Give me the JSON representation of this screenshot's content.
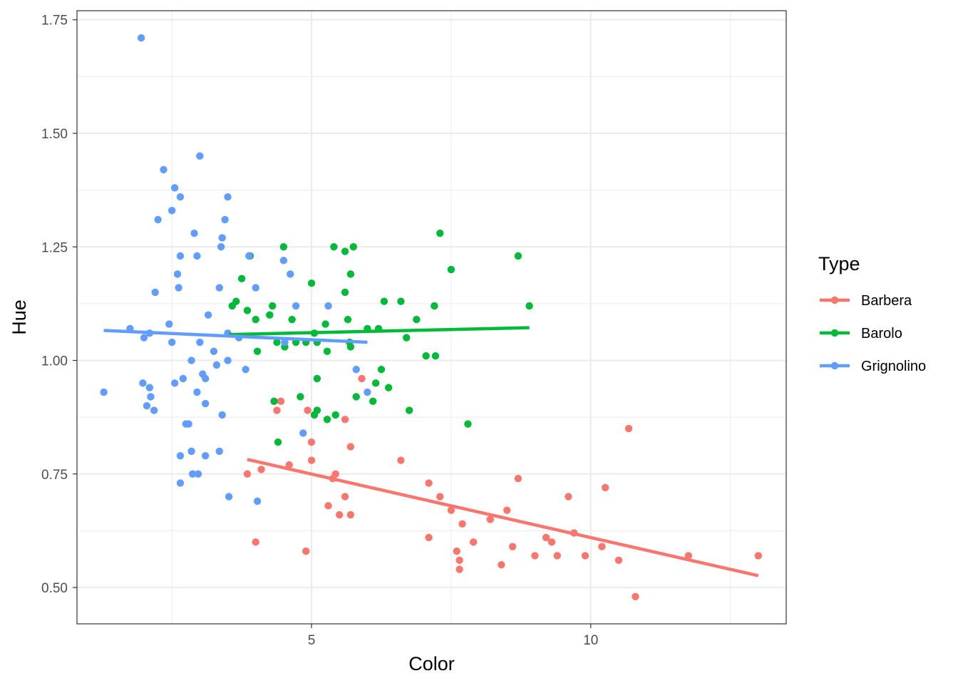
{
  "chart_data": {
    "type": "scatter",
    "xlabel": "Color",
    "ylabel": "Hue",
    "xlim": [
      0.8,
      13.5
    ],
    "ylim": [
      0.42,
      1.77
    ],
    "x_ticks": [
      5,
      10
    ],
    "x_tick_labels": [
      "5",
      "10"
    ],
    "x_minor_ticks": [
      2.5,
      7.5,
      12.5
    ],
    "y_ticks": [
      0.5,
      0.75,
      1.0,
      1.25,
      1.5,
      1.75
    ],
    "y_tick_labels": [
      "0.50",
      "0.75",
      "1.00",
      "1.25",
      "1.50",
      "1.75"
    ],
    "y_minor_ticks": [
      0.625,
      0.875,
      1.125,
      1.375,
      1.625
    ],
    "grid": true,
    "legend": {
      "title": "Type",
      "position": "right"
    },
    "series": [
      {
        "name": "Barbera",
        "color": "#F8766D",
        "points": [
          [
            3.85,
            0.75
          ],
          [
            4.0,
            0.6
          ],
          [
            4.1,
            0.76
          ],
          [
            4.38,
            0.89
          ],
          [
            4.45,
            0.91
          ],
          [
            4.6,
            0.77
          ],
          [
            4.9,
            0.58
          ],
          [
            4.93,
            0.89
          ],
          [
            5.0,
            0.82
          ],
          [
            5.0,
            0.78
          ],
          [
            5.3,
            0.68
          ],
          [
            5.38,
            0.74
          ],
          [
            5.43,
            0.75
          ],
          [
            5.5,
            0.66
          ],
          [
            5.6,
            0.87
          ],
          [
            5.6,
            0.7
          ],
          [
            5.7,
            0.81
          ],
          [
            5.7,
            0.66
          ],
          [
            5.9,
            0.96
          ],
          [
            6.6,
            0.78
          ],
          [
            7.1,
            0.73
          ],
          [
            7.1,
            0.61
          ],
          [
            7.3,
            0.7
          ],
          [
            7.5,
            0.67
          ],
          [
            7.6,
            0.58
          ],
          [
            7.65,
            0.56
          ],
          [
            7.65,
            0.54
          ],
          [
            7.7,
            0.64
          ],
          [
            7.9,
            0.6
          ],
          [
            8.2,
            0.65
          ],
          [
            8.4,
            0.55
          ],
          [
            8.5,
            0.67
          ],
          [
            8.6,
            0.59
          ],
          [
            8.7,
            0.74
          ],
          [
            9.0,
            0.57
          ],
          [
            9.2,
            0.61
          ],
          [
            9.3,
            0.6
          ],
          [
            9.4,
            0.57
          ],
          [
            9.6,
            0.7
          ],
          [
            9.7,
            0.62
          ],
          [
            9.9,
            0.57
          ],
          [
            10.2,
            0.59
          ],
          [
            10.26,
            0.72
          ],
          [
            10.5,
            0.56
          ],
          [
            10.68,
            0.85
          ],
          [
            10.8,
            0.48
          ],
          [
            11.75,
            0.57
          ],
          [
            13.0,
            0.57
          ]
        ],
        "fit": [
          [
            3.85,
            0.782
          ],
          [
            13.0,
            0.526
          ]
        ]
      },
      {
        "name": "Barolo",
        "color": "#00BA38",
        "points": [
          [
            3.58,
            1.12
          ],
          [
            3.65,
            1.13
          ],
          [
            3.75,
            1.18
          ],
          [
            3.85,
            1.11
          ],
          [
            3.9,
            1.23
          ],
          [
            4.0,
            1.09
          ],
          [
            4.03,
            1.02
          ],
          [
            4.25,
            1.1
          ],
          [
            4.3,
            1.12
          ],
          [
            4.33,
            0.91
          ],
          [
            4.38,
            1.04
          ],
          [
            4.4,
            0.82
          ],
          [
            4.5,
            1.25
          ],
          [
            4.52,
            1.03
          ],
          [
            4.65,
            1.09
          ],
          [
            4.72,
            1.04
          ],
          [
            4.8,
            0.92
          ],
          [
            4.9,
            1.04
          ],
          [
            5.0,
            1.17
          ],
          [
            5.05,
            0.88
          ],
          [
            5.05,
            1.06
          ],
          [
            5.1,
            0.96
          ],
          [
            5.1,
            0.89
          ],
          [
            5.1,
            1.04
          ],
          [
            5.25,
            1.08
          ],
          [
            5.28,
            1.02
          ],
          [
            5.28,
            0.87
          ],
          [
            5.4,
            1.25
          ],
          [
            5.43,
            0.88
          ],
          [
            5.6,
            1.24
          ],
          [
            5.6,
            1.15
          ],
          [
            5.65,
            1.09
          ],
          [
            5.68,
            1.04
          ],
          [
            5.7,
            1.03
          ],
          [
            5.7,
            1.19
          ],
          [
            5.75,
            1.25
          ],
          [
            5.8,
            0.92
          ],
          [
            6.0,
            1.07
          ],
          [
            6.1,
            0.91
          ],
          [
            6.15,
            0.95
          ],
          [
            6.2,
            1.07
          ],
          [
            6.25,
            0.98
          ],
          [
            6.3,
            1.13
          ],
          [
            6.38,
            0.94
          ],
          [
            6.6,
            1.13
          ],
          [
            6.7,
            1.05
          ],
          [
            6.75,
            0.89
          ],
          [
            6.88,
            1.09
          ],
          [
            7.05,
            1.01
          ],
          [
            7.2,
            1.12
          ],
          [
            7.22,
            1.01
          ],
          [
            7.3,
            1.28
          ],
          [
            7.5,
            1.2
          ],
          [
            7.8,
            0.86
          ],
          [
            8.7,
            1.23
          ],
          [
            8.9,
            1.12
          ]
        ],
        "fit": [
          [
            3.52,
            1.057
          ],
          [
            8.9,
            1.072
          ]
        ]
      },
      {
        "name": "Grignolino",
        "color": "#619CFF",
        "points": [
          [
            1.28,
            0.93
          ],
          [
            1.75,
            1.07
          ],
          [
            1.95,
            1.71
          ],
          [
            1.98,
            0.95
          ],
          [
            2.0,
            1.05
          ],
          [
            2.05,
            0.9
          ],
          [
            2.1,
            1.06
          ],
          [
            2.1,
            0.94
          ],
          [
            2.12,
            0.92
          ],
          [
            2.18,
            0.89
          ],
          [
            2.2,
            1.15
          ],
          [
            2.25,
            1.31
          ],
          [
            2.35,
            1.42
          ],
          [
            2.45,
            1.08
          ],
          [
            2.5,
            1.33
          ],
          [
            2.5,
            1.04
          ],
          [
            2.55,
            1.38
          ],
          [
            2.55,
            0.95
          ],
          [
            2.6,
            1.19
          ],
          [
            2.62,
            1.16
          ],
          [
            2.65,
            1.36
          ],
          [
            2.65,
            1.23
          ],
          [
            2.65,
            0.79
          ],
          [
            2.65,
            0.73
          ],
          [
            2.7,
            0.96
          ],
          [
            2.75,
            0.86
          ],
          [
            2.8,
            0.86
          ],
          [
            2.85,
            1.0
          ],
          [
            2.85,
            0.8
          ],
          [
            2.87,
            0.75
          ],
          [
            2.9,
            1.28
          ],
          [
            2.95,
            1.23
          ],
          [
            2.95,
            0.93
          ],
          [
            2.97,
            0.75
          ],
          [
            3.0,
            1.45
          ],
          [
            3.0,
            1.04
          ],
          [
            3.05,
            0.97
          ],
          [
            3.1,
            0.96
          ],
          [
            3.1,
            0.905
          ],
          [
            3.1,
            0.79
          ],
          [
            3.15,
            1.1
          ],
          [
            3.25,
            1.02
          ],
          [
            3.3,
            0.99
          ],
          [
            3.35,
            1.16
          ],
          [
            3.35,
            0.8
          ],
          [
            3.38,
            1.25
          ],
          [
            3.4,
            1.27
          ],
          [
            3.4,
            0.88
          ],
          [
            3.45,
            1.31
          ],
          [
            3.5,
            1.36
          ],
          [
            3.5,
            1.06
          ],
          [
            3.5,
            1.0
          ],
          [
            3.52,
            0.7
          ],
          [
            3.7,
            1.05
          ],
          [
            3.82,
            0.98
          ],
          [
            3.88,
            1.23
          ],
          [
            4.0,
            1.16
          ],
          [
            4.03,
            0.69
          ],
          [
            4.5,
            1.22
          ],
          [
            4.52,
            1.04
          ],
          [
            4.62,
            1.19
          ],
          [
            4.72,
            1.12
          ],
          [
            4.85,
            0.84
          ],
          [
            5.3,
            1.12
          ],
          [
            5.8,
            0.98
          ],
          [
            6.0,
            0.93
          ]
        ],
        "fit": [
          [
            1.28,
            1.066
          ],
          [
            6.0,
            1.04
          ]
        ]
      }
    ]
  }
}
